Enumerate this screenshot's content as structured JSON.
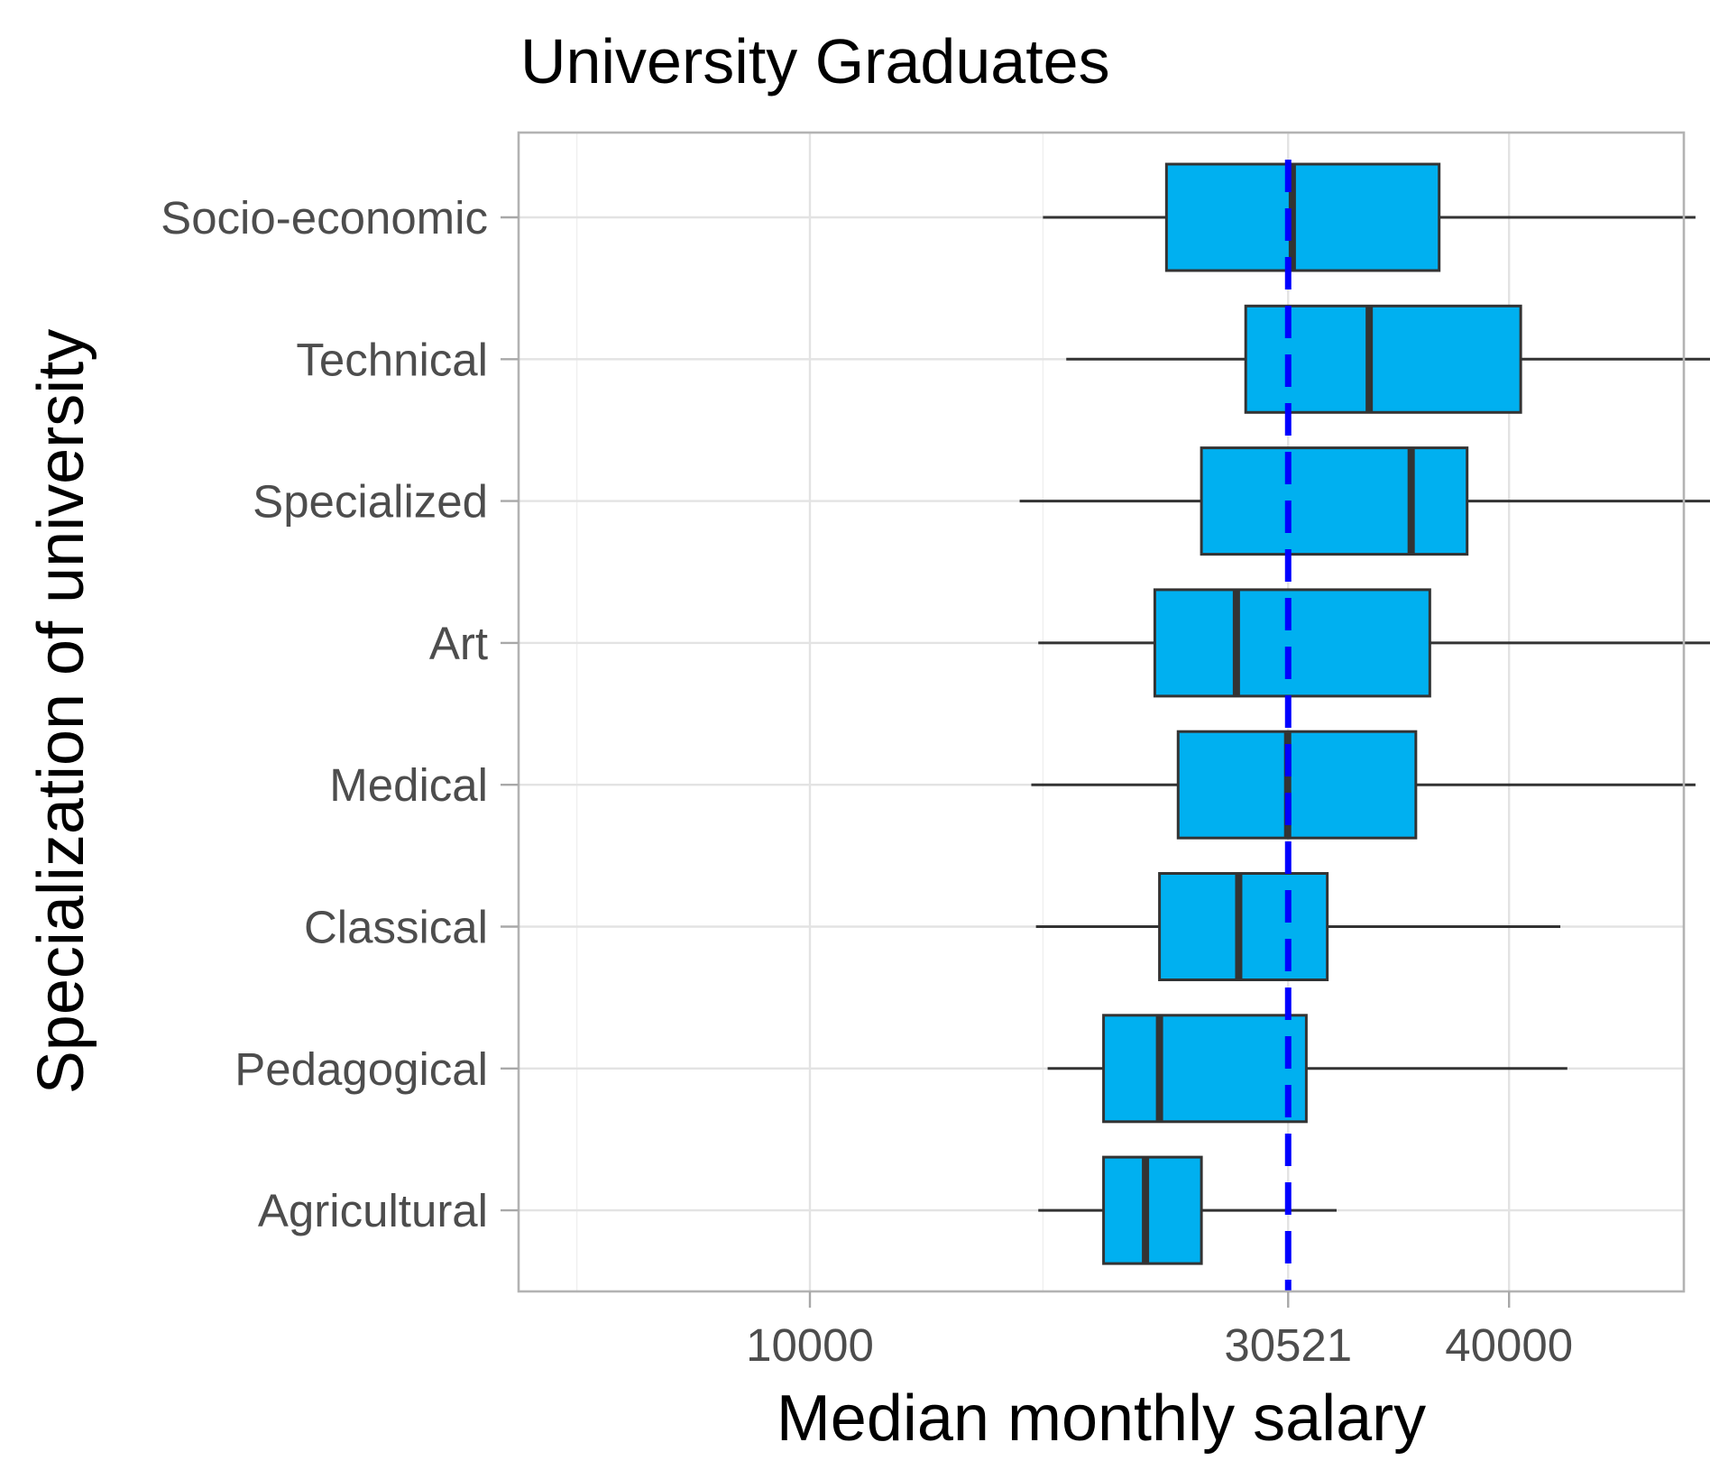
{
  "chart_data": {
    "type": "boxplot",
    "orientation": "horizontal",
    "title": "University Graduates",
    "xlabel": "Median monthly salary",
    "ylabel": "Specialization of university",
    "xlim": [
      -2500,
      47500
    ],
    "x_major_ticks": [
      10000,
      40000
    ],
    "x_minor_gridlines": [
      0,
      20000,
      50000
    ],
    "reference_line": {
      "value": 30521,
      "label": "30521",
      "style": "dashed",
      "color": "#0000ff"
    },
    "box_fill": "#00b0f0",
    "box_outline": "#333333",
    "grid": true,
    "categories": [
      "Socio-economic",
      "Technical",
      "Specialized",
      "Art",
      "Medical",
      "Classical",
      "Pedagogical",
      "Agricultural"
    ],
    "boxes": [
      {
        "category": "Socio-economic",
        "whisker_low": 20000,
        "q1": 25300,
        "median": 30700,
        "q3": 37000,
        "whisker_high": 48000
      },
      {
        "category": "Technical",
        "whisker_low": 21000,
        "q1": 28700,
        "median": 34000,
        "q3": 40500,
        "whisker_high": 50000
      },
      {
        "category": "Specialized",
        "whisker_low": 19000,
        "q1": 26800,
        "median": 35800,
        "q3": 38200,
        "whisker_high": 50000
      },
      {
        "category": "Art",
        "whisker_low": 19800,
        "q1": 24800,
        "median": 28300,
        "q3": 36600,
        "whisker_high": 48800
      },
      {
        "category": "Medical",
        "whisker_low": 19500,
        "q1": 25800,
        "median": 30500,
        "q3": 36000,
        "whisker_high": 48000
      },
      {
        "category": "Classical",
        "whisker_low": 19700,
        "q1": 25000,
        "median": 28400,
        "q3": 32200,
        "whisker_high": 42200
      },
      {
        "category": "Pedagogical",
        "whisker_low": 20200,
        "q1": 22600,
        "median": 25000,
        "q3": 31300,
        "whisker_high": 42500
      },
      {
        "category": "Agricultural",
        "whisker_low": 19800,
        "q1": 22600,
        "median": 24400,
        "q3": 26800,
        "whisker_high": 32600
      }
    ]
  }
}
